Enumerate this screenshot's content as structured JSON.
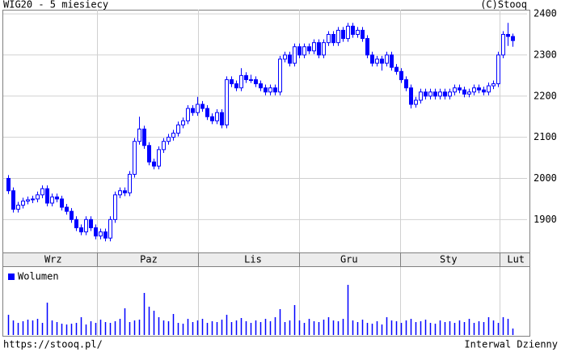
{
  "chart_data": {
    "type": "candlestick",
    "title": "WIG20 - 5 miesiecy",
    "credit": "(C)Stooq",
    "volume_label": "Wolumen",
    "footer_left": "https://stooq.pl/",
    "footer_right": "Interwal Dzienny",
    "color": "#0000ff",
    "grid": true,
    "ylim": [
      1820,
      2410
    ],
    "yticks": [
      1900,
      2000,
      2100,
      2200,
      2300,
      2400
    ],
    "xlim": [
      -1,
      107
    ],
    "xticks": [
      18.33,
      39.17,
      60,
      80.83,
      101.33
    ],
    "month_labels": [
      {
        "value": 9.3,
        "label": "Wrz"
      },
      {
        "value": 29,
        "label": "Paz"
      },
      {
        "value": 50.5,
        "label": "Lis"
      },
      {
        "value": 70.3,
        "label": "Gru"
      },
      {
        "value": 90.8,
        "label": "Sty"
      },
      {
        "value": 104.7,
        "label": "Lut"
      }
    ],
    "candles": [
      [
        2000,
        2008,
        1962,
        1970
      ],
      [
        1970,
        1978,
        1917,
        1925
      ],
      [
        1925,
        1943,
        1917,
        1935
      ],
      [
        1935,
        1953,
        1927,
        1945
      ],
      [
        1945,
        1956,
        1937,
        1948
      ],
      [
        1948,
        1958,
        1940,
        1950
      ],
      [
        1950,
        1968,
        1942,
        1960
      ],
      [
        1960,
        1983,
        1952,
        1975
      ],
      [
        1975,
        1983,
        1932,
        1940
      ],
      [
        1940,
        1963,
        1932,
        1955
      ],
      [
        1955,
        1963,
        1942,
        1950
      ],
      [
        1950,
        1958,
        1922,
        1930
      ],
      [
        1930,
        1938,
        1912,
        1920
      ],
      [
        1920,
        1928,
        1892,
        1900
      ],
      [
        1900,
        1908,
        1872,
        1880
      ],
      [
        1880,
        1888,
        1862,
        1870
      ],
      [
        1870,
        1908,
        1862,
        1900
      ],
      [
        1900,
        1908,
        1872,
        1880
      ],
      [
        1880,
        1888,
        1852,
        1860
      ],
      [
        1860,
        1878,
        1852,
        1870
      ],
      [
        1870,
        1878,
        1847,
        1855
      ],
      [
        1855,
        1908,
        1847,
        1900
      ],
      [
        1900,
        1968,
        1892,
        1960
      ],
      [
        1960,
        1978,
        1952,
        1970
      ],
      [
        1970,
        1978,
        1957,
        1965
      ],
      [
        1965,
        2018,
        1957,
        2010
      ],
      [
        2010,
        2098,
        2002,
        2090
      ],
      [
        2090,
        2150,
        2082,
        2120
      ],
      [
        2120,
        2128,
        2072,
        2080
      ],
      [
        2080,
        2088,
        2032,
        2040
      ],
      [
        2040,
        2048,
        2022,
        2030
      ],
      [
        2030,
        2078,
        2022,
        2070
      ],
      [
        2070,
        2098,
        2062,
        2090
      ],
      [
        2090,
        2108,
        2082,
        2100
      ],
      [
        2100,
        2118,
        2092,
        2110
      ],
      [
        2110,
        2138,
        2102,
        2130
      ],
      [
        2130,
        2148,
        2122,
        2140
      ],
      [
        2140,
        2178,
        2132,
        2170
      ],
      [
        2170,
        2178,
        2152,
        2160
      ],
      [
        2160,
        2198,
        2152,
        2180
      ],
      [
        2180,
        2188,
        2162,
        2170
      ],
      [
        2170,
        2178,
        2142,
        2150
      ],
      [
        2150,
        2158,
        2132,
        2140
      ],
      [
        2140,
        2168,
        2132,
        2160
      ],
      [
        2160,
        2168,
        2122,
        2130
      ],
      [
        2130,
        2248,
        2122,
        2240
      ],
      [
        2240,
        2248,
        2222,
        2230
      ],
      [
        2230,
        2238,
        2212,
        2220
      ],
      [
        2220,
        2268,
        2212,
        2250
      ],
      [
        2250,
        2258,
        2232,
        2240
      ],
      [
        2240,
        2252,
        2232,
        2240
      ],
      [
        2240,
        2248,
        2222,
        2230
      ],
      [
        2230,
        2238,
        2212,
        2220
      ],
      [
        2220,
        2228,
        2202,
        2210
      ],
      [
        2210,
        2228,
        2202,
        2220
      ],
      [
        2220,
        2228,
        2202,
        2210
      ],
      [
        2210,
        2298,
        2202,
        2290
      ],
      [
        2290,
        2308,
        2282,
        2300
      ],
      [
        2300,
        2308,
        2272,
        2280
      ],
      [
        2280,
        2328,
        2272,
        2320
      ],
      [
        2320,
        2328,
        2292,
        2300
      ],
      [
        2300,
        2328,
        2292,
        2320
      ],
      [
        2320,
        2328,
        2302,
        2310
      ],
      [
        2310,
        2338,
        2302,
        2330
      ],
      [
        2330,
        2338,
        2292,
        2300
      ],
      [
        2300,
        2338,
        2292,
        2330
      ],
      [
        2330,
        2358,
        2322,
        2350
      ],
      [
        2350,
        2358,
        2322,
        2330
      ],
      [
        2330,
        2368,
        2322,
        2360
      ],
      [
        2360,
        2368,
        2332,
        2340
      ],
      [
        2340,
        2378,
        2332,
        2370
      ],
      [
        2370,
        2378,
        2342,
        2350
      ],
      [
        2350,
        2368,
        2342,
        2360
      ],
      [
        2360,
        2368,
        2332,
        2340
      ],
      [
        2340,
        2348,
        2292,
        2300
      ],
      [
        2300,
        2308,
        2272,
        2280
      ],
      [
        2280,
        2298,
        2272,
        2290
      ],
      [
        2290,
        2298,
        2262,
        2280
      ],
      [
        2280,
        2308,
        2272,
        2300
      ],
      [
        2300,
        2308,
        2262,
        2270
      ],
      [
        2270,
        2278,
        2252,
        2260
      ],
      [
        2260,
        2268,
        2232,
        2240
      ],
      [
        2240,
        2248,
        2212,
        2220
      ],
      [
        2220,
        2228,
        2170,
        2180
      ],
      [
        2180,
        2198,
        2172,
        2190
      ],
      [
        2190,
        2218,
        2182,
        2210
      ],
      [
        2210,
        2218,
        2192,
        2200
      ],
      [
        2200,
        2218,
        2192,
        2210
      ],
      [
        2210,
        2218,
        2192,
        2200
      ],
      [
        2200,
        2218,
        2192,
        2210
      ],
      [
        2210,
        2218,
        2192,
        2200
      ],
      [
        2200,
        2218,
        2192,
        2210
      ],
      [
        2210,
        2228,
        2202,
        2220
      ],
      [
        2220,
        2228,
        2207,
        2215
      ],
      [
        2215,
        2223,
        2197,
        2205
      ],
      [
        2205,
        2218,
        2197,
        2210
      ],
      [
        2210,
        2228,
        2202,
        2220
      ],
      [
        2220,
        2228,
        2207,
        2215
      ],
      [
        2215,
        2223,
        2202,
        2210
      ],
      [
        2210,
        2233,
        2202,
        2225
      ],
      [
        2225,
        2238,
        2217,
        2230
      ],
      [
        2230,
        2308,
        2222,
        2300
      ],
      [
        2300,
        2358,
        2292,
        2350
      ],
      [
        2350,
        2378,
        2322,
        2345
      ],
      [
        2345,
        2352,
        2320,
        2335
      ]
    ],
    "vlim": [
      0,
      80
    ],
    "volume": [
      25,
      18,
      15,
      17,
      19,
      18,
      20,
      15,
      40,
      18,
      16,
      14,
      13,
      14,
      15,
      22,
      13,
      17,
      15,
      19,
      16,
      15,
      17,
      20,
      33,
      16,
      18,
      19,
      52,
      35,
      30,
      22,
      18,
      17,
      26,
      15,
      14,
      20,
      16,
      18,
      20,
      15,
      17,
      16,
      19,
      25,
      16,
      18,
      21,
      17,
      15,
      18,
      16,
      20,
      17,
      22,
      32,
      16,
      18,
      37,
      18,
      15,
      20,
      17,
      16,
      19,
      22,
      18,
      17,
      20,
      62,
      18,
      16,
      19,
      15,
      14,
      17,
      13,
      22,
      18,
      17,
      15,
      18,
      20,
      16,
      17,
      19,
      15,
      14,
      18,
      16,
      17,
      15,
      18,
      16,
      20,
      15,
      17,
      16,
      22,
      18,
      15,
      22,
      20,
      8
    ]
  }
}
